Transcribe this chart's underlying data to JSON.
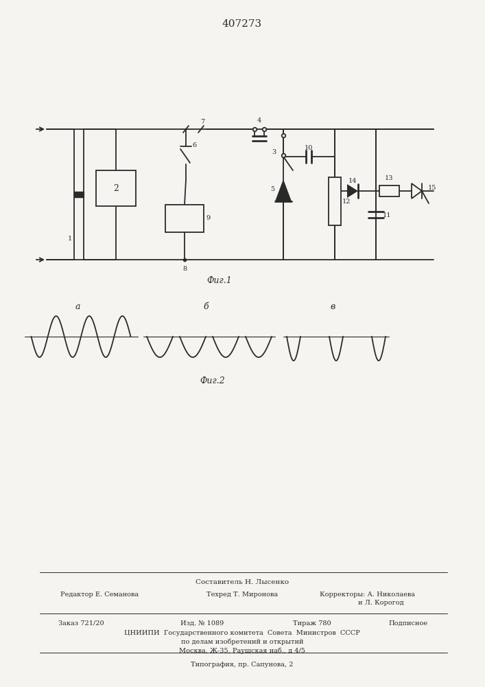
{
  "patent_number": "407273",
  "fig1_label": "Фиг.1",
  "fig2_label": "Фиг.2",
  "bg_color": "#f5f4f0",
  "line_color": "#2a2a2a",
  "footer": {
    "line1": "Составитель Н. Лысенко",
    "editor": "Редактор Е. Семанова",
    "techred": "Техред Т. Миронова",
    "correctors1": "Корректоры: А. Николаева",
    "correctors2": "и Л. Корогод",
    "zakaz": "Заказ 721/20",
    "izd": "Изд. № 1089",
    "tirazh": "Тираж 780",
    "podpisnoe": "Подписное",
    "cniip1": "ЦНИИПИ  Государственного комитета  Совета  Министров  СССР",
    "cniip2": "по делам изобретений и открытий",
    "cniip3": "Москва, Ж-35, Раушская наб., д 4/5",
    "tipografia": "Типография, пр. Сапунова, 2"
  }
}
